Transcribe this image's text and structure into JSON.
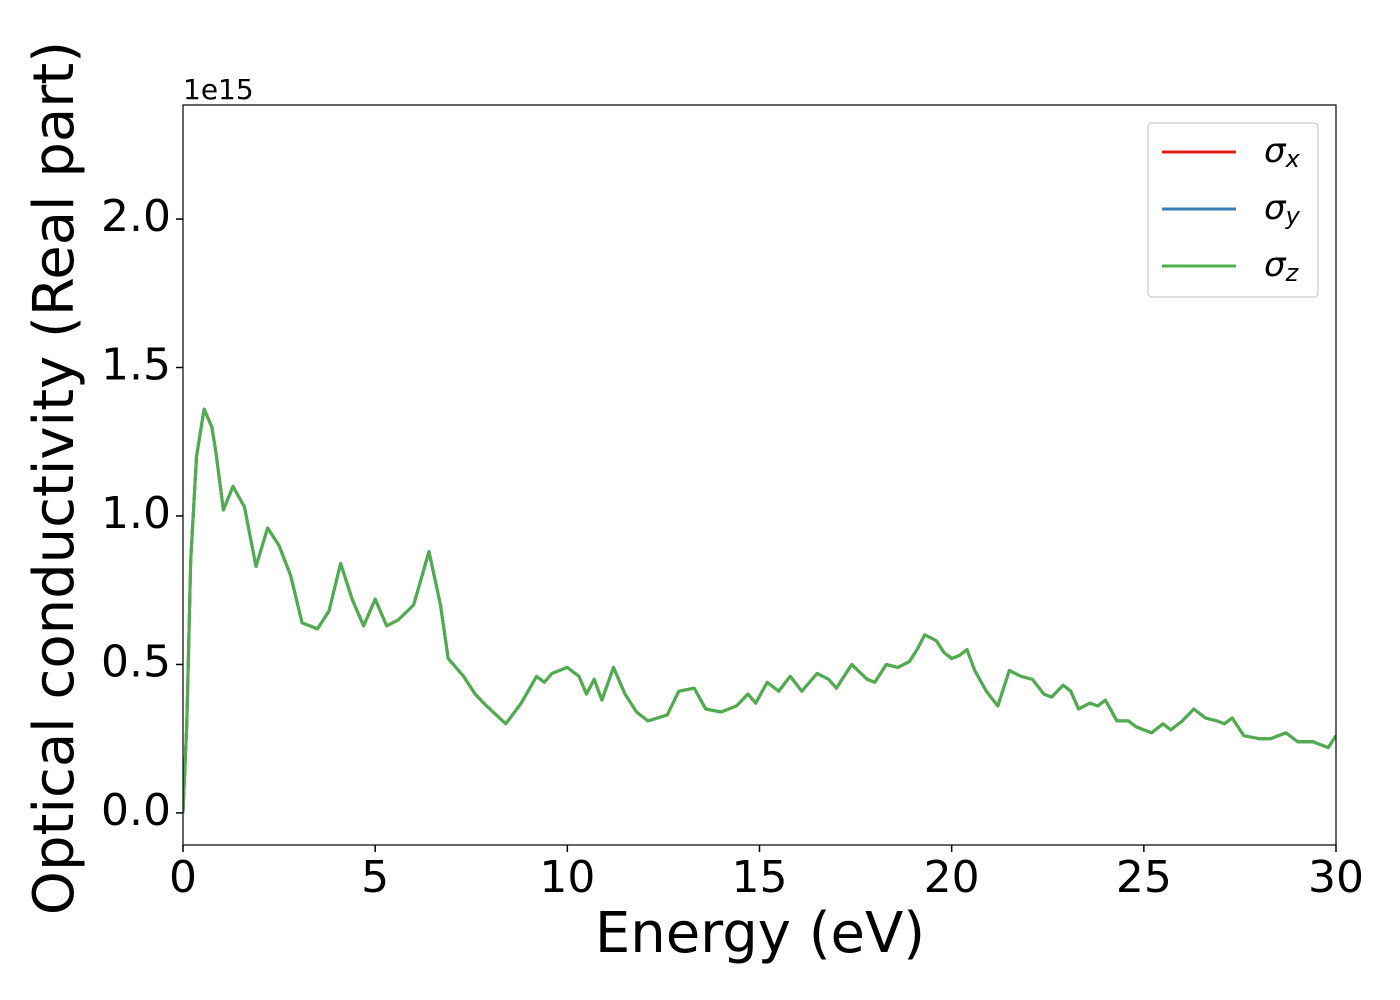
{
  "chart_data": {
    "type": "line",
    "xlabel": "Energy (eV)",
    "ylabel": "Optical conductivity (Real part)",
    "y_offset_label": "1e15",
    "x": [
      0,
      0.1,
      0.2,
      0.35,
      0.55,
      0.75,
      0.85,
      1.05,
      1.3,
      1.6,
      1.9,
      2.2,
      2.5,
      2.8,
      3.1,
      3.5,
      3.8,
      4.1,
      4.4,
      4.7,
      5.0,
      5.3,
      5.6,
      6.0,
      6.4,
      6.7,
      6.9,
      7.3,
      7.6,
      7.9,
      8.4,
      8.8,
      9.2,
      9.4,
      9.6,
      10.0,
      10.3,
      10.5,
      10.7,
      10.9,
      11.2,
      11.5,
      11.8,
      12.1,
      12.6,
      12.9,
      13.3,
      13.6,
      14.0,
      14.4,
      14.7,
      14.9,
      15.2,
      15.5,
      15.8,
      16.1,
      16.5,
      16.8,
      17.0,
      17.4,
      17.8,
      18.0,
      18.3,
      18.6,
      18.9,
      19.1,
      19.3,
      19.6,
      19.8,
      20.0,
      20.2,
      20.4,
      20.6,
      20.9,
      21.2,
      21.5,
      21.8,
      22.1,
      22.4,
      22.6,
      22.9,
      23.1,
      23.3,
      23.6,
      23.8,
      24.0,
      24.3,
      24.6,
      24.8,
      25.2,
      25.5,
      25.7,
      26.0,
      26.3,
      26.6,
      26.9,
      27.1,
      27.3,
      27.6,
      28.0,
      28.3,
      28.7,
      29.0,
      29.4,
      29.8,
      30.0
    ],
    "series": [
      {
        "name": "σx",
        "color": "#e41a1c",
        "values": [
          0.0,
          0.3,
          0.85,
          1.2,
          1.36,
          1.3,
          1.22,
          1.02,
          1.1,
          1.03,
          0.83,
          0.96,
          0.9,
          0.8,
          0.64,
          0.62,
          0.68,
          0.84,
          0.72,
          0.63,
          0.72,
          0.63,
          0.65,
          0.7,
          0.88,
          0.7,
          0.52,
          0.46,
          0.4,
          0.36,
          0.3,
          0.37,
          0.46,
          0.44,
          0.47,
          0.49,
          0.46,
          0.4,
          0.45,
          0.38,
          0.49,
          0.4,
          0.34,
          0.31,
          0.33,
          0.41,
          0.42,
          0.35,
          0.34,
          0.36,
          0.4,
          0.37,
          0.44,
          0.41,
          0.46,
          0.41,
          0.47,
          0.45,
          0.42,
          0.5,
          0.45,
          0.44,
          0.5,
          0.49,
          0.51,
          0.55,
          0.6,
          0.58,
          0.54,
          0.52,
          0.53,
          0.55,
          0.48,
          0.41,
          0.36,
          0.48,
          0.46,
          0.45,
          0.4,
          0.39,
          0.43,
          0.41,
          0.35,
          0.37,
          0.36,
          0.38,
          0.31,
          0.31,
          0.29,
          0.27,
          0.3,
          0.28,
          0.31,
          0.35,
          0.32,
          0.31,
          0.3,
          0.32,
          0.26,
          0.25,
          0.25,
          0.27,
          0.24,
          0.24,
          0.22,
          0.26
        ]
      },
      {
        "name": "σy",
        "color": "#377eb8",
        "values": [
          0.0,
          0.3,
          0.85,
          1.2,
          1.36,
          1.3,
          1.22,
          1.02,
          1.1,
          1.03,
          0.83,
          0.96,
          0.9,
          0.8,
          0.64,
          0.62,
          0.68,
          0.84,
          0.72,
          0.63,
          0.72,
          0.63,
          0.65,
          0.7,
          0.88,
          0.7,
          0.52,
          0.46,
          0.4,
          0.36,
          0.3,
          0.37,
          0.46,
          0.44,
          0.47,
          0.49,
          0.46,
          0.4,
          0.45,
          0.38,
          0.49,
          0.4,
          0.34,
          0.31,
          0.33,
          0.41,
          0.42,
          0.35,
          0.34,
          0.36,
          0.4,
          0.37,
          0.44,
          0.41,
          0.46,
          0.41,
          0.47,
          0.45,
          0.42,
          0.5,
          0.45,
          0.44,
          0.5,
          0.49,
          0.51,
          0.55,
          0.6,
          0.58,
          0.54,
          0.52,
          0.53,
          0.55,
          0.48,
          0.41,
          0.36,
          0.48,
          0.46,
          0.45,
          0.4,
          0.39,
          0.43,
          0.41,
          0.35,
          0.37,
          0.36,
          0.38,
          0.31,
          0.31,
          0.29,
          0.27,
          0.3,
          0.28,
          0.31,
          0.35,
          0.32,
          0.31,
          0.3,
          0.32,
          0.26,
          0.25,
          0.25,
          0.27,
          0.24,
          0.24,
          0.22,
          0.26
        ]
      },
      {
        "name": "σz",
        "color": "#4daf4a",
        "values": [
          0.0,
          0.3,
          0.85,
          1.2,
          1.36,
          1.3,
          1.22,
          1.02,
          1.1,
          1.03,
          0.83,
          0.96,
          0.9,
          0.8,
          0.64,
          0.62,
          0.68,
          0.84,
          0.72,
          0.63,
          0.72,
          0.63,
          0.65,
          0.7,
          0.88,
          0.7,
          0.52,
          0.46,
          0.4,
          0.36,
          0.3,
          0.37,
          0.46,
          0.44,
          0.47,
          0.49,
          0.46,
          0.4,
          0.45,
          0.38,
          0.49,
          0.4,
          0.34,
          0.31,
          0.33,
          0.41,
          0.42,
          0.35,
          0.34,
          0.36,
          0.4,
          0.37,
          0.44,
          0.41,
          0.46,
          0.41,
          0.47,
          0.45,
          0.42,
          0.5,
          0.45,
          0.44,
          0.5,
          0.49,
          0.51,
          0.55,
          0.6,
          0.58,
          0.54,
          0.52,
          0.53,
          0.55,
          0.48,
          0.41,
          0.36,
          0.48,
          0.46,
          0.45,
          0.4,
          0.39,
          0.43,
          0.41,
          0.35,
          0.37,
          0.36,
          0.38,
          0.31,
          0.31,
          0.29,
          0.27,
          0.3,
          0.28,
          0.31,
          0.35,
          0.32,
          0.31,
          0.3,
          0.32,
          0.26,
          0.25,
          0.25,
          0.27,
          0.24,
          0.24,
          0.22,
          0.26
        ]
      }
    ],
    "xlim": [
      0,
      30
    ],
    "xticks": [
      0,
      5,
      10,
      15,
      20,
      25,
      30
    ],
    "ylim": [
      -0.108,
      2.384
    ],
    "yticks": [
      {
        "value": 0,
        "label": "0.0"
      },
      0.5,
      {
        "value": 1,
        "label": "1.0"
      },
      1.5,
      {
        "value": 2,
        "label": "2.0"
      }
    ],
    "grid": false,
    "legend": "upper right"
  }
}
